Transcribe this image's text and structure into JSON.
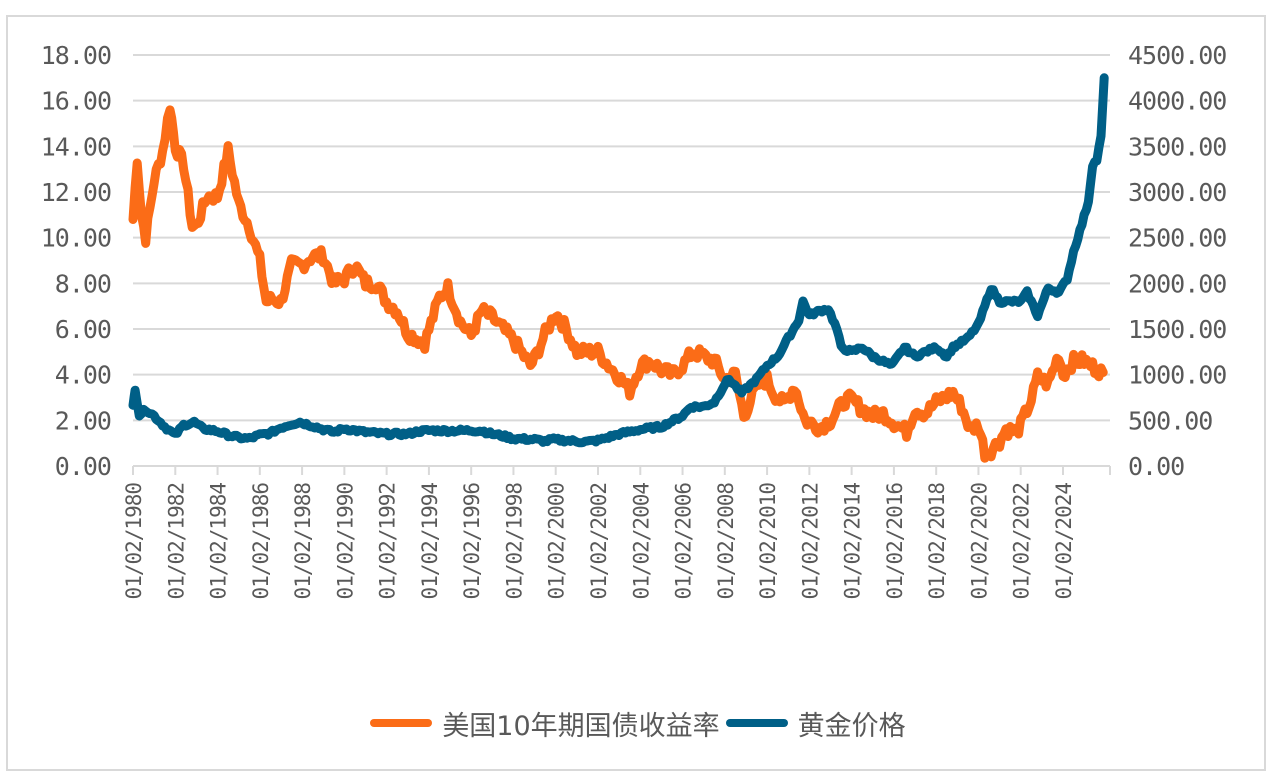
{
  "colors": {
    "yield": "#fb6c17",
    "gold": "#005f87",
    "grid": "#d9d9d9",
    "text": "#595959"
  },
  "legend": {
    "yield_label": "美国10年期国债收益率",
    "gold_label": "黄金价格"
  },
  "chart_data": {
    "type": "line",
    "title": "",
    "xlabel": "",
    "ylabel_left": "",
    "ylabel_right": "",
    "grid": true,
    "legend_position": "bottom",
    "left_axis": {
      "ylim": [
        0,
        18
      ],
      "ticks": [
        "0.00",
        "2.00",
        "4.00",
        "6.00",
        "8.00",
        "10.00",
        "12.00",
        "14.00",
        "16.00",
        "18.00"
      ]
    },
    "right_axis": {
      "ylim": [
        0,
        4500
      ],
      "ticks": [
        "0.00",
        "500.00",
        "1000.00",
        "1500.00",
        "2000.00",
        "2500.00",
        "3000.00",
        "3500.00",
        "4000.00",
        "4500.00"
      ]
    },
    "x_tick_labels": [
      "01/02/1980",
      "01/02/1982",
      "01/02/1984",
      "01/02/1986",
      "01/02/1988",
      "01/02/1990",
      "01/02/1992",
      "01/02/1994",
      "01/02/1996",
      "01/02/1998",
      "01/02/2000",
      "01/02/2002",
      "01/02/2004",
      "01/02/2006",
      "01/02/2008",
      "01/02/2010",
      "01/02/2012",
      "01/02/2014",
      "01/02/2016",
      "01/02/2018",
      "01/02/2020",
      "01/02/2022",
      "01/02/2024"
    ],
    "series": [
      {
        "name": "美国10年期国债收益率",
        "axis": "left",
        "x": [
          1980.0,
          1980.2,
          1980.4,
          1980.6,
          1981.0,
          1981.4,
          1981.75,
          1982.0,
          1982.4,
          1982.8,
          1983.0,
          1983.5,
          1984.0,
          1984.5,
          1985.0,
          1985.5,
          1986.0,
          1986.3,
          1986.6,
          1987.0,
          1987.5,
          1988.0,
          1988.5,
          1989.0,
          1989.5,
          1990.0,
          1990.5,
          1991.0,
          1991.5,
          1992.0,
          1992.5,
          1993.0,
          1993.8,
          1994.5,
          1994.9,
          1995.5,
          1996.0,
          1996.5,
          1997.0,
          1997.5,
          1998.0,
          1998.8,
          1999.0,
          1999.5,
          2000.0,
          2000.5,
          2001.0,
          2001.5,
          2002.0,
          2002.5,
          2003.0,
          2003.5,
          2004.0,
          2004.5,
          2005.0,
          2005.5,
          2006.0,
          2006.5,
          2007.0,
          2007.5,
          2008.0,
          2008.5,
          2008.9,
          2009.5,
          2010.0,
          2010.3,
          2010.8,
          2011.3,
          2011.8,
          2012.5,
          2013.0,
          2013.7,
          2014.0,
          2014.5,
          2015.0,
          2015.5,
          2016.0,
          2016.6,
          2017.0,
          2017.5,
          2018.0,
          2018.8,
          2019.2,
          2019.6,
          2020.0,
          2020.3,
          2020.6,
          2021.0,
          2021.3,
          2021.8,
          2022.0,
          2022.5,
          2022.8,
          2023.3,
          2023.8,
          2024.0,
          2024.5,
          2025.0,
          2025.5,
          2025.9
        ],
        "values": [
          10.8,
          13.5,
          11.0,
          10.0,
          12.5,
          13.8,
          15.8,
          14.0,
          13.2,
          10.5,
          10.5,
          11.8,
          11.8,
          13.8,
          11.5,
          10.5,
          9.0,
          7.2,
          7.3,
          7.2,
          8.8,
          8.8,
          9.2,
          9.2,
          8.0,
          8.2,
          8.8,
          8.0,
          8.0,
          7.2,
          6.8,
          5.8,
          5.4,
          7.4,
          7.8,
          6.3,
          5.7,
          6.8,
          6.5,
          6.0,
          5.5,
          4.4,
          4.7,
          5.8,
          6.7,
          6.0,
          5.0,
          5.0,
          5.0,
          4.4,
          3.9,
          3.3,
          4.4,
          4.6,
          4.2,
          4.0,
          4.4,
          5.0,
          4.8,
          4.6,
          3.8,
          4.0,
          2.2,
          3.5,
          3.8,
          3.2,
          2.7,
          3.5,
          2.0,
          1.7,
          2.0,
          2.9,
          2.9,
          2.5,
          2.2,
          2.3,
          1.9,
          1.5,
          2.5,
          2.3,
          2.8,
          3.2,
          2.6,
          1.6,
          1.8,
          0.6,
          0.7,
          1.1,
          1.6,
          1.5,
          1.8,
          2.9,
          3.9,
          3.6,
          4.9,
          4.0,
          4.6,
          4.6,
          4.3,
          4.1
        ]
      },
      {
        "name": "黄金价格",
        "axis": "right",
        "x": [
          1980.0,
          1980.1,
          1980.3,
          1980.6,
          1981.0,
          1981.5,
          1982.0,
          1982.4,
          1982.9,
          1983.3,
          1984.0,
          1984.5,
          1985.0,
          1985.5,
          1986.0,
          1986.5,
          1987.0,
          1987.5,
          1987.9,
          1988.5,
          1989.0,
          1989.5,
          1990.0,
          1990.5,
          1991.0,
          1992.0,
          1993.0,
          1993.5,
          1994.0,
          1995.0,
          1996.0,
          1996.5,
          1997.0,
          1997.5,
          1998.0,
          1999.0,
          1999.5,
          1999.8,
          2000.5,
          2001.0,
          2001.5,
          2002.0,
          2003.0,
          2004.0,
          2005.0,
          2006.0,
          2006.4,
          2007.0,
          2007.5,
          2008.0,
          2008.2,
          2008.8,
          2009.5,
          2010.0,
          2010.5,
          2011.0,
          2011.5,
          2011.7,
          2012.0,
          2012.5,
          2012.9,
          2013.3,
          2013.5,
          2014.0,
          2014.5,
          2015.0,
          2015.9,
          2016.5,
          2017.0,
          2017.5,
          2018.0,
          2018.5,
          2018.8,
          2019.5,
          2020.0,
          2020.6,
          2021.0,
          2021.5,
          2022.0,
          2022.3,
          2022.8,
          2023.3,
          2023.8,
          2024.2,
          2024.5,
          2024.9,
          2025.2,
          2025.4,
          2025.6,
          2025.8,
          2025.95
        ],
        "values": [
          650,
          850,
          560,
          620,
          550,
          430,
          340,
          450,
          480,
          410,
          380,
          340,
          310,
          300,
          340,
          360,
          420,
          460,
          480,
          440,
          400,
          370,
          410,
          390,
          370,
          350,
          350,
          380,
          390,
          385,
          390,
          385,
          350,
          330,
          300,
          290,
          270,
          290,
          280,
          270,
          265,
          280,
          350,
          400,
          430,
          550,
          650,
          650,
          700,
          900,
          950,
          800,
          950,
          1100,
          1200,
          1400,
          1600,
          1800,
          1650,
          1700,
          1720,
          1500,
          1300,
          1250,
          1300,
          1200,
          1100,
          1300,
          1200,
          1250,
          1300,
          1200,
          1300,
          1400,
          1550,
          1950,
          1800,
          1800,
          1800,
          1900,
          1650,
          1950,
          1900,
          2050,
          2350,
          2650,
          2900,
          3300,
          3350,
          3600,
          4250
        ]
      }
    ]
  }
}
